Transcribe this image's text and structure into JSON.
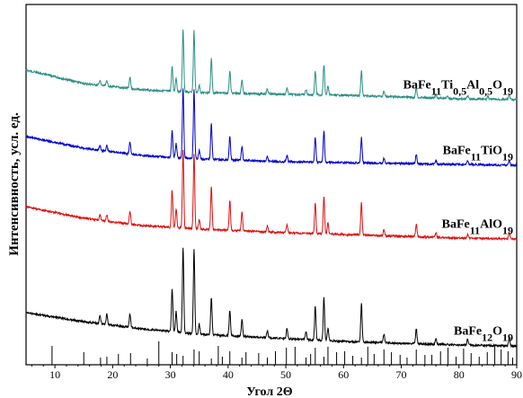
{
  "chart_data": {
    "type": "line",
    "xlabel": "Угол 2Θ",
    "ylabel": "Интенсивность, усл. ед.",
    "xlim": [
      5,
      90
    ],
    "x_ticks": [
      10,
      20,
      30,
      40,
      50,
      60,
      70,
      80,
      90
    ],
    "y_ticks_shown": false,
    "grid": false,
    "legend": "inline labels to the right of each pattern",
    "series": [
      {
        "key": "ti05al05",
        "label_parts": [
          [
            "BaFe",
            0
          ],
          [
            "11",
            -1
          ],
          [
            "Ti",
            0
          ],
          [
            "0,5",
            -1
          ],
          [
            "Al",
            0
          ],
          [
            "0,5",
            -1
          ],
          [
            "O",
            0
          ],
          [
            "19",
            -1
          ]
        ],
        "color": "#2a8f84",
        "baseline": [
          [
            5,
            78
          ],
          [
            15,
            93
          ],
          [
            25,
            100
          ],
          [
            35,
            103
          ],
          [
            50,
            105
          ],
          [
            60,
            106
          ],
          [
            70,
            108
          ],
          [
            80,
            110
          ],
          [
            90,
            111
          ]
        ],
        "peaks": [
          [
            17.8,
            8
          ],
          [
            19.0,
            9
          ],
          [
            23.0,
            18
          ],
          [
            30.3,
            40
          ],
          [
            31.0,
            22
          ],
          [
            32.2,
            100
          ],
          [
            34.1,
            98
          ],
          [
            35.0,
            12
          ],
          [
            37.1,
            55
          ],
          [
            40.3,
            35
          ],
          [
            42.4,
            22
          ],
          [
            46.8,
            8
          ],
          [
            50.2,
            10
          ],
          [
            53.5,
            8
          ],
          [
            55.1,
            38
          ],
          [
            56.6,
            48
          ],
          [
            57.3,
            14
          ],
          [
            63.1,
            40
          ],
          [
            67.0,
            8
          ],
          [
            72.6,
            16
          ],
          [
            76.0,
            6
          ],
          [
            78.0,
            5
          ],
          [
            81.5,
            5
          ],
          [
            85.0,
            5
          ],
          [
            88.7,
            8
          ]
        ]
      },
      {
        "key": "ti",
        "label_parts": [
          [
            "BaFe",
            0
          ],
          [
            "11",
            -1
          ],
          [
            "TiO",
            0
          ],
          [
            "19",
            -1
          ]
        ],
        "color": "#0000cc",
        "baseline": [
          [
            5,
            152
          ],
          [
            15,
            165
          ],
          [
            25,
            173
          ],
          [
            35,
            177
          ],
          [
            50,
            180
          ],
          [
            60,
            181
          ],
          [
            70,
            182
          ],
          [
            80,
            183
          ],
          [
            90,
            184
          ]
        ],
        "peaks": [
          [
            17.8,
            7
          ],
          [
            19.0,
            8
          ],
          [
            23.0,
            18
          ],
          [
            30.3,
            38
          ],
          [
            31.0,
            20
          ],
          [
            32.2,
            100
          ],
          [
            34.1,
            98
          ],
          [
            35.0,
            12
          ],
          [
            37.1,
            52
          ],
          [
            40.3,
            34
          ],
          [
            42.4,
            20
          ],
          [
            46.8,
            7
          ],
          [
            50.2,
            9
          ],
          [
            55.1,
            35
          ],
          [
            56.6,
            44
          ],
          [
            63.1,
            36
          ],
          [
            67.0,
            7
          ],
          [
            72.6,
            14
          ],
          [
            76.0,
            5
          ],
          [
            81.5,
            5
          ],
          [
            88.7,
            7
          ]
        ]
      },
      {
        "key": "al",
        "label_parts": [
          [
            "BaFe",
            0
          ],
          [
            "11",
            -1
          ],
          [
            "AlO",
            0
          ],
          [
            "19",
            -1
          ]
        ],
        "color": "#dd1111",
        "baseline": [
          [
            5,
            230
          ],
          [
            15,
            243
          ],
          [
            25,
            251
          ],
          [
            35,
            255
          ],
          [
            50,
            259
          ],
          [
            60,
            261
          ],
          [
            70,
            263
          ],
          [
            80,
            265
          ],
          [
            90,
            266
          ]
        ],
        "peaks": [
          [
            17.8,
            7
          ],
          [
            19.0,
            8
          ],
          [
            23.0,
            16
          ],
          [
            30.3,
            48
          ],
          [
            31.0,
            24
          ],
          [
            32.2,
            100
          ],
          [
            34.1,
            96
          ],
          [
            35.0,
            12
          ],
          [
            37.1,
            55
          ],
          [
            40.3,
            38
          ],
          [
            42.4,
            24
          ],
          [
            46.8,
            8
          ],
          [
            50.2,
            10
          ],
          [
            55.1,
            40
          ],
          [
            56.6,
            48
          ],
          [
            57.3,
            14
          ],
          [
            63.1,
            42
          ],
          [
            67.0,
            8
          ],
          [
            72.6,
            16
          ],
          [
            76.0,
            6
          ],
          [
            81.5,
            5
          ],
          [
            88.7,
            8
          ]
        ]
      },
      {
        "key": "fe12",
        "label_parts": [
          [
            "BaFe",
            0
          ],
          [
            "12",
            -1
          ],
          [
            "O",
            0
          ],
          [
            "19",
            -1
          ]
        ],
        "color": "#000000",
        "baseline": [
          [
            5,
            348
          ],
          [
            15,
            358
          ],
          [
            25,
            366
          ],
          [
            35,
            372
          ],
          [
            50,
            377
          ],
          [
            60,
            380
          ],
          [
            70,
            382
          ],
          [
            80,
            384
          ],
          [
            90,
            385
          ]
        ],
        "peaks": [
          [
            17.8,
            10
          ],
          [
            19.0,
            12
          ],
          [
            23.0,
            16
          ],
          [
            30.3,
            50
          ],
          [
            31.0,
            24
          ],
          [
            32.2,
            100
          ],
          [
            34.1,
            100
          ],
          [
            35.0,
            12
          ],
          [
            37.1,
            44
          ],
          [
            40.3,
            30
          ],
          [
            42.4,
            20
          ],
          [
            46.8,
            8
          ],
          [
            50.2,
            12
          ],
          [
            53.5,
            10
          ],
          [
            55.1,
            40
          ],
          [
            56.6,
            50
          ],
          [
            57.3,
            14
          ],
          [
            63.1,
            45
          ],
          [
            67.0,
            10
          ],
          [
            72.6,
            18
          ],
          [
            76.0,
            7
          ],
          [
            81.5,
            7
          ],
          [
            88.7,
            10
          ]
        ]
      }
    ],
    "reference_lines": [
      9.5,
      15.0,
      17.9,
      19.0,
      21.0,
      23.1,
      26.0,
      28.0,
      30.3,
      31.1,
      32.2,
      34.1,
      35.0,
      37.1,
      38.3,
      39.0,
      40.3,
      42.4,
      43.1,
      45.3,
      46.8,
      48.2,
      50.1,
      51.6,
      53.5,
      54.3,
      55.1,
      56.6,
      57.3,
      58.8,
      60.2,
      61.6,
      63.1,
      64.2,
      65.3,
      67.0,
      68.3,
      69.8,
      71.0,
      72.6,
      74.1,
      75.3,
      76.8,
      78.1,
      79.5,
      80.8,
      82.1,
      83.5,
      84.9,
      86.2,
      87.3,
      88.5,
      89.3
    ]
  }
}
